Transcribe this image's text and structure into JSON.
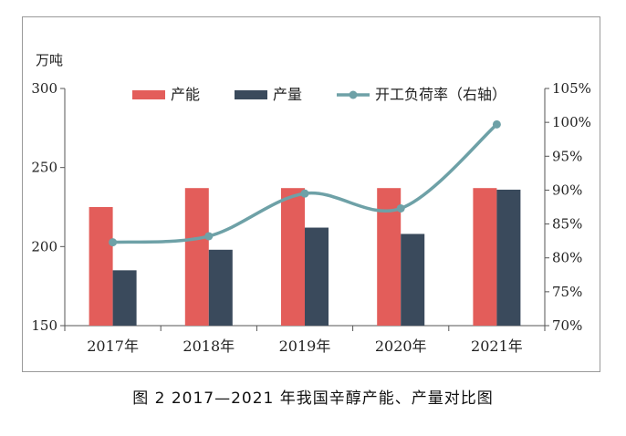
{
  "caption": "图 2  2017—2021 年我国辛醇产能、产量对比图",
  "colors": {
    "capacity": "#e35d5a",
    "output": "#3a4a5c",
    "rate": "#6ea1a7"
  },
  "chart_data": {
    "type": "bar",
    "categories": [
      "2017年",
      "2018年",
      "2019年",
      "2020年",
      "2021年"
    ],
    "series": [
      {
        "name": "产能",
        "type": "bar",
        "axis": "left",
        "values": [
          225,
          237,
          237,
          237,
          237
        ]
      },
      {
        "name": "产量",
        "type": "bar",
        "axis": "left",
        "values": [
          185,
          198,
          212,
          208,
          236
        ]
      },
      {
        "name": "开工负荷率（右轴）",
        "type": "line",
        "axis": "right",
        "values": [
          82.3,
          83.2,
          89.5,
          87.3,
          99.7
        ]
      }
    ],
    "y_left": {
      "label": "万吨",
      "ylim": [
        150,
        300
      ],
      "ticks": [
        "150",
        "200",
        "250",
        "300"
      ]
    },
    "y_right": {
      "ylim": [
        70,
        105
      ],
      "ticks": [
        "70%",
        "75%",
        "80%",
        "85%",
        "90%",
        "95%",
        "100%",
        "105%"
      ]
    },
    "legend_position": "top",
    "grid": false
  }
}
